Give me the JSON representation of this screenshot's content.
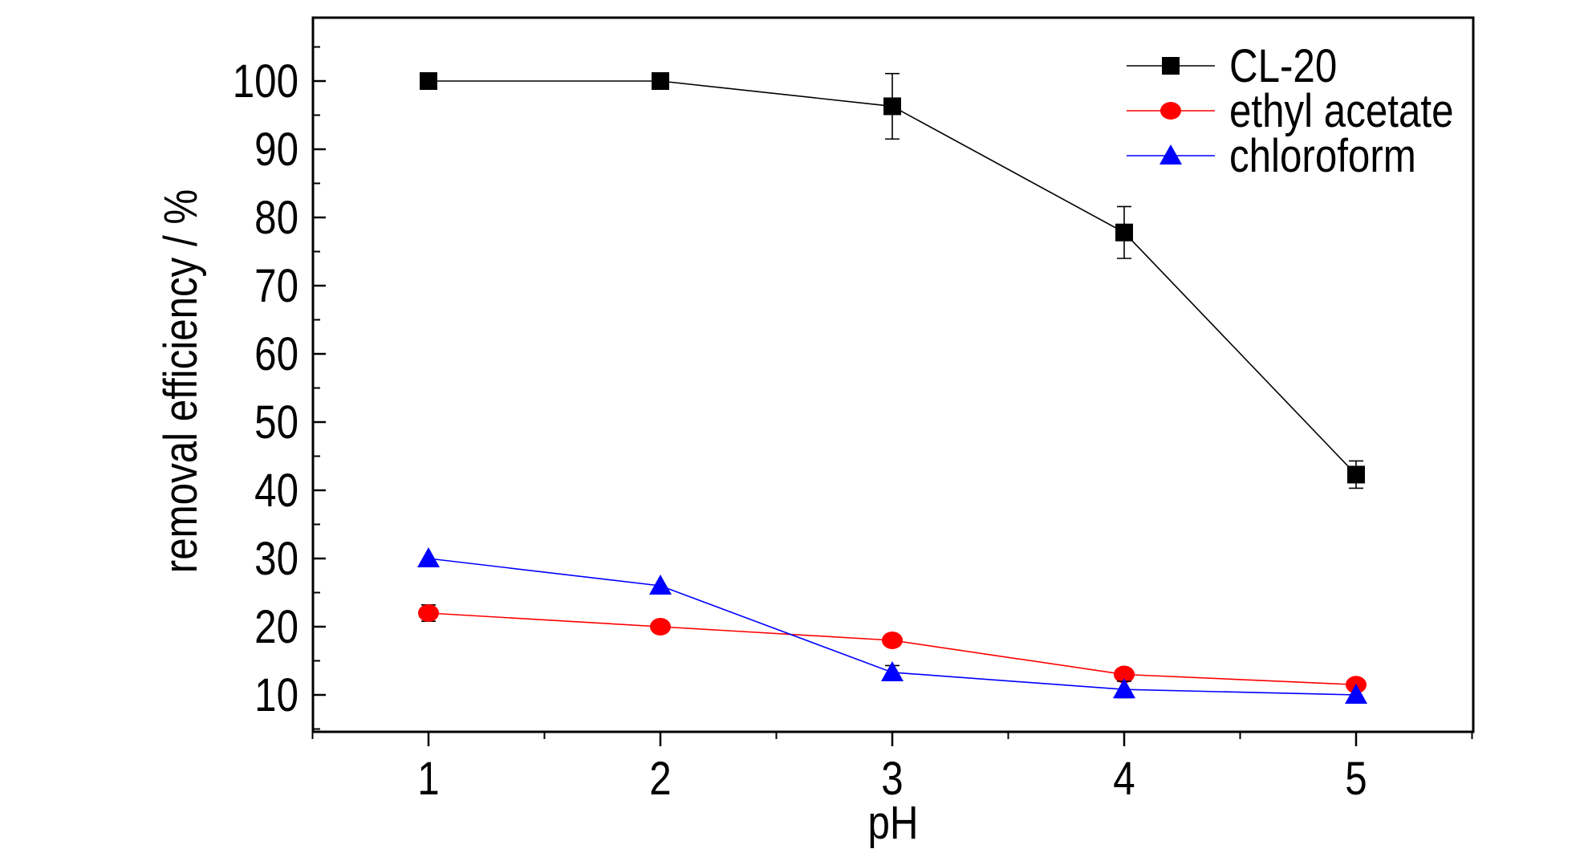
{
  "chart_data": {
    "type": "line",
    "title": "",
    "xlabel": "pH",
    "ylabel": "removal efficiency / %",
    "x": [
      1,
      2,
      3,
      4,
      5
    ],
    "x_ticks": [
      "1",
      "2",
      "3",
      "4",
      "5"
    ],
    "y_ticks": [
      "10",
      "20",
      "30",
      "40",
      "50",
      "60",
      "70",
      "80",
      "90",
      "100"
    ],
    "xlim": [
      0.5,
      5.5
    ],
    "ylim": [
      5,
      110
    ],
    "grid": false,
    "legend_position": "top-right",
    "series": [
      {
        "name": "CL-20",
        "marker": "square",
        "color": "#000000",
        "values": [
          100,
          100,
          96.3,
          77.8,
          42.3
        ],
        "errors": [
          0,
          0,
          4.8,
          3.8,
          2.0
        ]
      },
      {
        "name": "ethyl acetate",
        "marker": "circle",
        "color": "#ff0000",
        "values": [
          22,
          20,
          18,
          13,
          11.5
        ],
        "errors": [
          1.2,
          0,
          0,
          0,
          0
        ]
      },
      {
        "name": "chloroform",
        "marker": "triangle",
        "color": "#0000ff",
        "values": [
          30,
          26,
          13.3,
          10.8,
          10
        ],
        "errors": [
          0,
          0,
          1.0,
          1.2,
          0
        ]
      }
    ]
  }
}
